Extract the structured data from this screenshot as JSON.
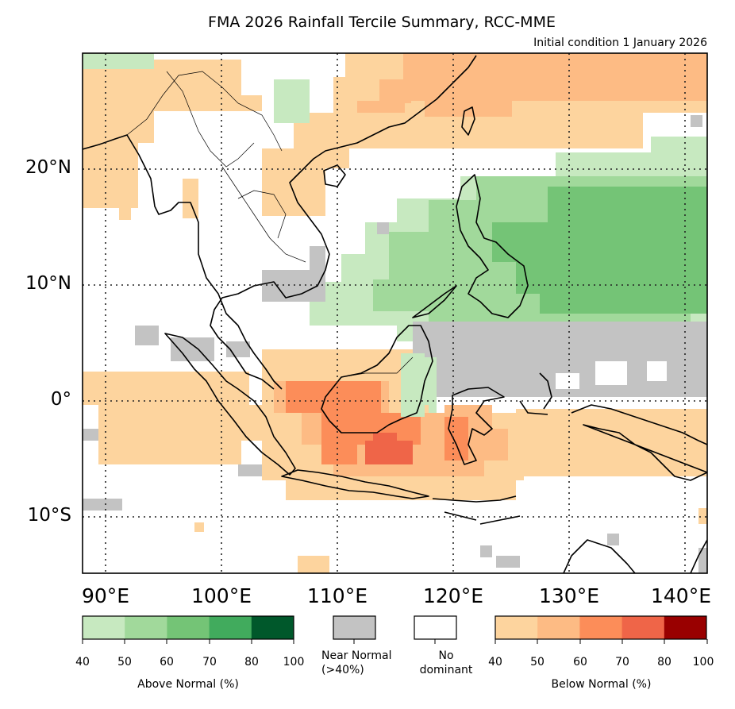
{
  "title": "FMA 2026 Rainfall Tercile Summary, RCC-MME",
  "subtitle": "Initial condition 1 January 2026",
  "axes": {
    "lat_labels": [
      "20°N",
      "10°N",
      "0°",
      "10°S"
    ],
    "lon_labels": [
      "90°E",
      "100°E",
      "110°E",
      "120°E",
      "130°E",
      "140°E"
    ]
  },
  "colors": {
    "above": [
      "#c7e9c0",
      "#a1d99b",
      "#74c476",
      "#41ab5d",
      "#00582b"
    ],
    "near_normal": "#c3c3c3",
    "no_dominant": "#ffffff",
    "below": [
      "#fdd49e",
      "#fdbb84",
      "#fc8d59",
      "#ef6548",
      "#990000"
    ]
  },
  "legend": {
    "above": {
      "title": "Above Normal (%)",
      "ticks": [
        "40",
        "50",
        "60",
        "70",
        "80",
        "100"
      ]
    },
    "near_normal": {
      "line1": "Near Normal",
      "line2": "(>40%)"
    },
    "no_dominant": {
      "line1": "No",
      "line2": "dominant"
    },
    "below": {
      "title": "Below Normal (%)",
      "ticks": [
        "40",
        "50",
        "60",
        "70",
        "80",
        "100"
      ]
    }
  },
  "chart_data": {
    "type": "heatmap",
    "projection": "plate carree",
    "lon_range": [
      88,
      142
    ],
    "lat_range": [
      -15,
      30
    ],
    "gridlines_lon": [
      90,
      100,
      110,
      120,
      130,
      140
    ],
    "gridlines_lat": [
      20,
      10,
      0,
      -10
    ],
    "categories": [
      "above normal",
      "near normal",
      "no dominant",
      "below normal"
    ],
    "regions": [
      {
        "category": "below",
        "level": 1,
        "lon": [
          88,
          100
        ],
        "lat": [
          14,
          30
        ]
      },
      {
        "category": "below",
        "level": 1,
        "lon": [
          112,
          142
        ],
        "lat": [
          20,
          30
        ]
      },
      {
        "category": "below",
        "level": 2,
        "lon": [
          115,
          142
        ],
        "lat": [
          24,
          30
        ]
      },
      {
        "category": "above",
        "level": 1,
        "lon": [
          116,
          142
        ],
        "lat": [
          6,
          21
        ]
      },
      {
        "category": "above",
        "level": 2,
        "lon": [
          119,
          142
        ],
        "lat": [
          8,
          19
        ]
      },
      {
        "category": "above",
        "level": 3,
        "lon": [
          124,
          142
        ],
        "lat": [
          9,
          17
        ]
      },
      {
        "category": "near",
        "level": 0,
        "lon": [
          118,
          142
        ],
        "lat": [
          0,
          5
        ]
      },
      {
        "category": "below",
        "level": 1,
        "lon": [
          88,
          142
        ],
        "lat": [
          -7,
          0
        ]
      },
      {
        "category": "below",
        "level": 2,
        "lon": [
          104,
          118
        ],
        "lat": [
          -6,
          2
        ]
      },
      {
        "category": "below",
        "level": 3,
        "lon": [
          106,
          114
        ],
        "lat": [
          -6,
          1
        ]
      },
      {
        "category": "below",
        "level": 4,
        "lon": [
          110,
          114
        ],
        "lat": [
          -5,
          -3
        ]
      }
    ]
  }
}
